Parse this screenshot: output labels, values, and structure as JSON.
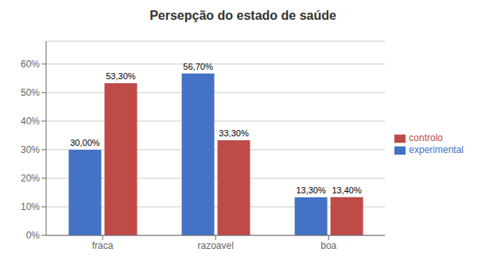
{
  "chart_data": {
    "type": "bar",
    "title": "Persepção do estado de saúde",
    "categories": [
      "fraca",
      "razoavel",
      "boa"
    ],
    "series": [
      {
        "name": "experimental",
        "color": "#4472C4",
        "values": [
          30.0,
          56.7,
          13.3
        ],
        "value_labels": [
          "30,00%",
          "56,70%",
          "13,30%"
        ]
      },
      {
        "name": "controlo",
        "color": "#BE4B48",
        "values": [
          53.3,
          33.3,
          13.4
        ],
        "value_labels": [
          "53,30%",
          "33,30%",
          "13,40%"
        ]
      }
    ],
    "ylim": [
      0,
      68
    ],
    "yticks": [
      {
        "value": 0,
        "label": "0%"
      },
      {
        "value": 10,
        "label": "10%"
      },
      {
        "value": 20,
        "label": "20%"
      },
      {
        "value": 30,
        "label": "30%"
      },
      {
        "value": 40,
        "label": "40%"
      },
      {
        "value": 50,
        "label": "50%"
      },
      {
        "value": 60,
        "label": "60%"
      }
    ],
    "grid": true,
    "legend": "right",
    "data_labels": true
  }
}
